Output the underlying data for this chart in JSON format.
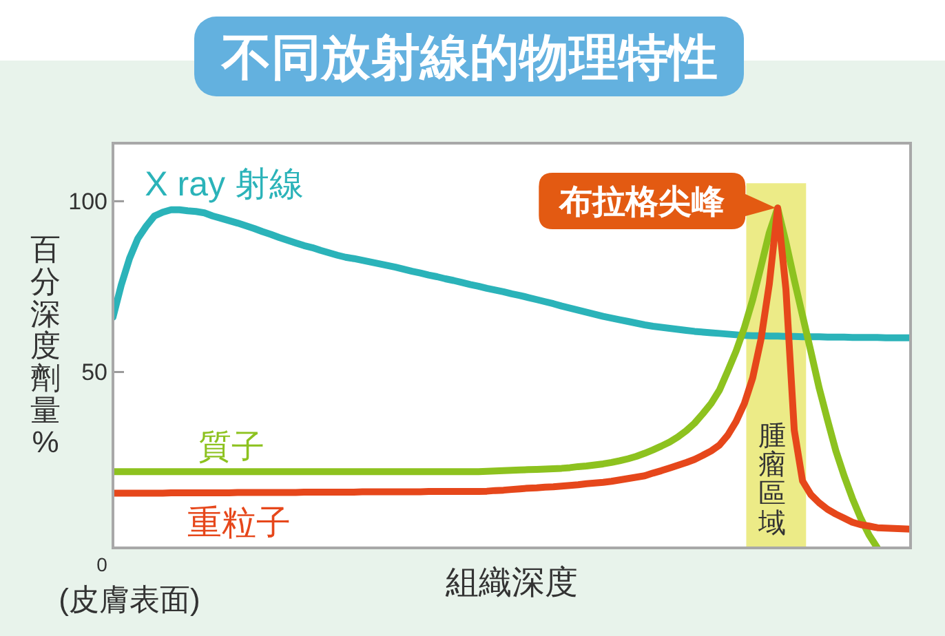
{
  "chart_data": {
    "type": "line",
    "title": "不同放射線的物理特性",
    "xlabel": "組織深度",
    "ylabel": "百分深度劑量%",
    "categories": [
      null,
      null,
      null,
      null,
      null,
      null,
      null,
      null,
      null,
      null,
      null,
      null,
      null,
      null,
      null,
      null,
      null,
      null,
      null,
      null,
      null,
      null,
      null,
      null,
      null,
      null,
      null,
      null,
      null,
      null,
      null,
      null,
      null,
      null,
      null,
      null,
      null,
      null,
      null,
      null,
      null,
      null,
      null,
      null,
      null,
      null,
      null,
      null,
      null,
      null,
      null,
      null,
      null,
      null,
      null,
      null,
      null,
      null,
      null,
      null,
      null,
      null,
      null,
      null,
      null,
      null,
      null,
      null,
      null,
      null,
      null,
      null,
      null,
      null,
      null,
      null,
      null,
      null,
      null,
      null,
      null,
      null,
      null,
      null,
      null,
      null,
      null,
      null,
      null,
      null,
      null,
      null,
      null,
      null,
      null,
      null,
      null
    ],
    "ylim": [
      -1.5,
      117
    ],
    "yticks": [
      50,
      100
    ],
    "series": [
      {
        "name": "X ray 射線",
        "color": "#2bb3b9",
        "values": [
          66.0,
          75.5,
          83.3,
          89.1,
          92.7,
          95.7,
          96.8,
          97.5,
          97.5,
          97.2,
          97.0,
          96.6,
          95.7,
          95.0,
          94.3,
          93.6,
          92.8,
          92.0,
          91.1,
          90.3,
          89.4,
          88.6,
          87.8,
          87.0,
          86.4,
          85.6,
          84.9,
          84.2,
          83.6,
          83.2,
          82.7,
          82.2,
          81.7,
          81.2,
          80.7,
          80.1,
          79.5,
          79.0,
          78.4,
          77.9,
          77.3,
          76.8,
          76.2,
          75.6,
          75.1,
          74.5,
          74.0,
          73.5,
          72.9,
          72.4,
          71.8,
          71.2,
          70.6,
          70.0,
          69.3,
          68.7,
          68.1,
          67.5,
          66.9,
          66.3,
          65.8,
          65.3,
          64.8,
          64.3,
          63.8,
          63.4,
          63.1,
          62.8,
          62.5,
          62.2,
          61.9,
          61.7,
          61.5,
          61.3,
          61.1,
          60.9,
          60.7,
          60.6,
          60.6,
          60.5,
          60.5,
          60.4,
          60.4,
          60.3,
          60.3,
          60.3,
          60.2,
          60.2,
          60.2,
          60.1,
          60.1,
          60.1,
          60.1,
          60.0,
          60.0,
          60.0,
          60.0
        ]
      },
      {
        "name": "質子",
        "color": "#8dc21f",
        "values": [
          20.8,
          20.8,
          20.8,
          20.8,
          20.8,
          20.8,
          20.8,
          20.8,
          20.8,
          20.8,
          20.8,
          20.8,
          20.8,
          20.8,
          20.8,
          20.8,
          20.8,
          20.8,
          20.8,
          20.8,
          20.8,
          20.8,
          20.8,
          20.8,
          20.8,
          20.8,
          20.8,
          20.8,
          20.8,
          20.8,
          20.8,
          20.8,
          20.8,
          20.8,
          20.8,
          20.8,
          20.8,
          20.8,
          20.8,
          20.8,
          20.8,
          20.8,
          20.8,
          20.8,
          20.8,
          20.9,
          21.0,
          21.1,
          21.2,
          21.3,
          21.4,
          21.5,
          21.6,
          21.7,
          21.8,
          22.0,
          22.3,
          22.5,
          22.8,
          23.1,
          23.5,
          24.0,
          24.6,
          25.3,
          26.2,
          27.2,
          28.3,
          29.5,
          31.0,
          32.8,
          35.0,
          37.8,
          40.8,
          44.7,
          50.3,
          56.1,
          63.0,
          71.2,
          80.9,
          90.8,
          98.0,
          88.0,
          77.0,
          66.5,
          56.0,
          45.3,
          36.0,
          27.0,
          19.6,
          13.0,
          7.2,
          2.3,
          -1.5,
          null,
          null,
          null,
          null
        ]
      },
      {
        "name": "重粒子",
        "color": "#e6471b",
        "values": [
          14.5,
          14.5,
          14.5,
          14.5,
          14.5,
          14.5,
          14.5,
          14.6,
          14.6,
          14.6,
          14.6,
          14.6,
          14.6,
          14.6,
          14.6,
          14.7,
          14.7,
          14.7,
          14.7,
          14.7,
          14.7,
          14.7,
          14.7,
          14.8,
          14.8,
          14.8,
          14.8,
          14.8,
          14.8,
          14.8,
          14.9,
          14.9,
          14.9,
          14.9,
          14.9,
          14.9,
          14.9,
          14.9,
          15.0,
          15.0,
          15.0,
          15.0,
          15.0,
          15.0,
          15.0,
          15.1,
          15.3,
          15.4,
          15.6,
          15.8,
          16.0,
          16.1,
          16.3,
          16.4,
          16.6,
          16.8,
          17.0,
          17.3,
          17.5,
          17.7,
          18.0,
          18.4,
          18.8,
          19.2,
          19.6,
          20.4,
          21.1,
          21.9,
          22.7,
          23.5,
          24.4,
          25.6,
          26.9,
          28.6,
          31.5,
          35.5,
          40.8,
          48.3,
          59.6,
          75.8,
          98.0,
          74.2,
          33.0,
          18.1,
          14.1,
          11.7,
          9.8,
          8.4,
          7.2,
          6.0,
          5.3,
          4.9,
          4.4,
          4.3,
          4.2,
          4.1,
          4.0
        ]
      }
    ],
    "annotations": [
      "0",
      "(皮膚表面)",
      "布拉格尖峰",
      "腫瘤區域"
    ]
  }
}
